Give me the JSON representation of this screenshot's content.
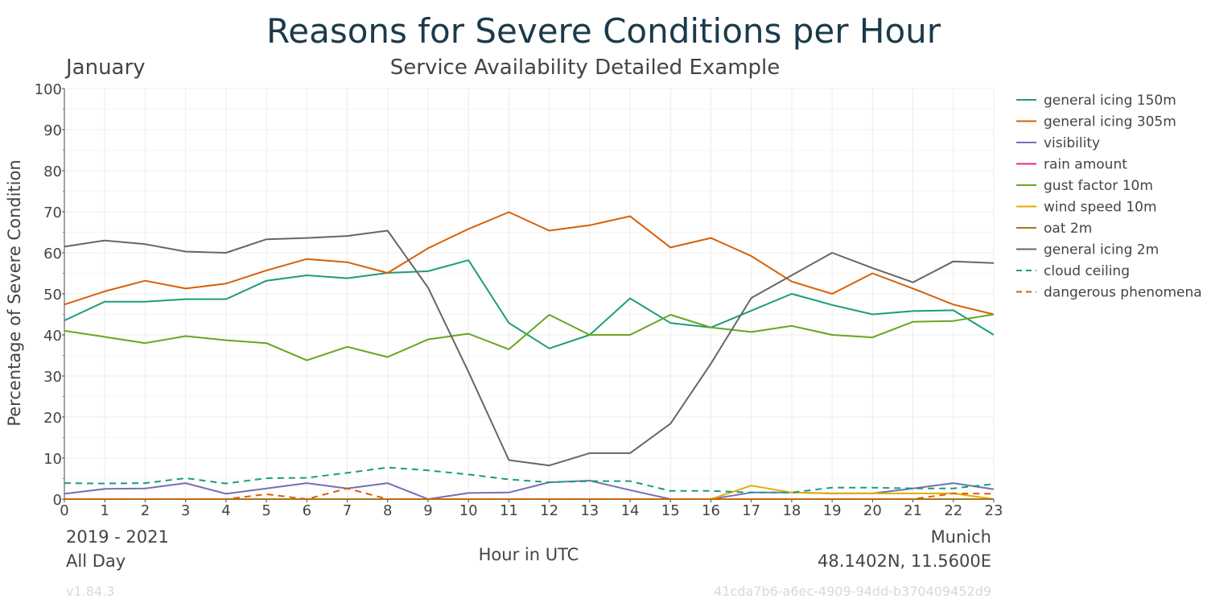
{
  "header": {
    "title": "Reasons for Severe Conditions per Hour",
    "month": "January",
    "subtitle": "Service Availability Detailed Example"
  },
  "footer": {
    "period": "2019 - 2021",
    "time_span": "All Day",
    "location_name": "Munich",
    "coordinates": "48.1402N, 11.5600E",
    "version": "v1.84.3",
    "uuid": "41cda7b6-a6ec-4909-94dd-b370409452d9"
  },
  "colors": {
    "title": "#1b3a4b",
    "text": "#444444",
    "grid": "#ececec",
    "faint": "#d8d8d8"
  },
  "chart_data": {
    "type": "line",
    "xlabel": "Hour in UTC",
    "ylabel": "Percentage of Severe Condition",
    "xlim": [
      0,
      23
    ],
    "ylim": [
      0,
      100
    ],
    "x_ticks": [
      0,
      1,
      2,
      3,
      4,
      5,
      6,
      7,
      8,
      9,
      10,
      11,
      12,
      13,
      14,
      15,
      16,
      17,
      18,
      19,
      20,
      21,
      22,
      23
    ],
    "y_ticks": [
      0,
      10,
      20,
      30,
      40,
      50,
      60,
      70,
      80,
      90,
      100
    ],
    "grid": true,
    "legend_position": "right",
    "x": [
      0,
      1,
      2,
      3,
      4,
      5,
      6,
      7,
      8,
      9,
      10,
      11,
      12,
      13,
      14,
      15,
      16,
      17,
      18,
      19,
      20,
      21,
      22,
      23
    ],
    "series": [
      {
        "name": "general icing 150m",
        "color": "#1b9e77",
        "dash": false,
        "values": [
          43.5,
          48.1,
          48.1,
          48.7,
          48.7,
          53.2,
          54.5,
          53.8,
          55.1,
          55.5,
          58.2,
          42.9,
          36.7,
          40.0,
          48.9,
          42.9,
          41.8,
          45.9,
          50.0,
          47.3,
          45.0,
          45.8,
          46.0,
          40.0
        ]
      },
      {
        "name": "general icing 305m",
        "color": "#d95f02",
        "dash": false,
        "values": [
          47.4,
          50.6,
          53.2,
          51.3,
          52.5,
          55.7,
          58.5,
          57.7,
          55.1,
          61.1,
          65.8,
          69.9,
          65.4,
          66.7,
          68.9,
          61.3,
          63.6,
          59.2,
          53.0,
          50.0,
          55.0,
          51.3,
          47.4,
          45.0
        ]
      },
      {
        "name": "visibility",
        "color": "#7570b3",
        "dash": false,
        "values": [
          1.3,
          2.5,
          2.6,
          3.9,
          1.3,
          2.6,
          3.9,
          2.6,
          3.9,
          0.0,
          1.5,
          1.6,
          4.1,
          4.5,
          2.2,
          0.0,
          0.0,
          1.6,
          1.6,
          1.4,
          1.4,
          2.6,
          3.9,
          2.4
        ]
      },
      {
        "name": "rain amount",
        "color": "#e7298a",
        "dash": false,
        "values": [
          0,
          0,
          0,
          0,
          0,
          0,
          0,
          0,
          0,
          0,
          0,
          0,
          0,
          0,
          0,
          0,
          0,
          0,
          0,
          0,
          0,
          0,
          0,
          0
        ]
      },
      {
        "name": "gust factor 10m",
        "color": "#66a61e",
        "dash": false,
        "values": [
          41.0,
          39.5,
          38.0,
          39.7,
          38.7,
          38.0,
          33.8,
          37.1,
          34.6,
          38.9,
          40.3,
          36.5,
          44.9,
          40.0,
          40.0,
          44.9,
          41.8,
          40.7,
          42.2,
          40.0,
          39.4,
          43.2,
          43.4,
          45.0
        ]
      },
      {
        "name": "wind speed 10m",
        "color": "#e6ab02",
        "dash": false,
        "values": [
          0,
          0,
          0,
          0,
          0,
          0,
          0,
          0,
          0,
          0,
          0,
          0,
          0,
          0,
          0,
          0,
          0,
          3.3,
          1.6,
          1.4,
          1.4,
          1.4,
          1.4,
          0.0
        ]
      },
      {
        "name": "oat 2m",
        "color": "#a6761d",
        "dash": false,
        "values": [
          0,
          0,
          0,
          0,
          0,
          0,
          0,
          0,
          0,
          0,
          0,
          0,
          0,
          0,
          0,
          0,
          0,
          0,
          0,
          0,
          0,
          0,
          0,
          0
        ]
      },
      {
        "name": "general icing 2m",
        "color": "#666666",
        "dash": false,
        "values": [
          61.5,
          63.0,
          62.1,
          60.3,
          60.0,
          63.3,
          63.6,
          64.1,
          65.4,
          51.5,
          31.0,
          9.5,
          8.2,
          11.2,
          11.2,
          18.4,
          33.0,
          49.0,
          54.5,
          60.0,
          56.3,
          52.8,
          57.9,
          57.5
        ]
      },
      {
        "name": "cloud ceiling",
        "color": "#1b9e77",
        "dash": true,
        "values": [
          3.9,
          3.8,
          3.9,
          5.1,
          3.8,
          5.1,
          5.2,
          6.4,
          7.7,
          7.0,
          6.0,
          4.8,
          4.1,
          4.4,
          4.4,
          2.0,
          2.0,
          1.6,
          1.6,
          2.8,
          2.8,
          2.6,
          2.6,
          3.7
        ]
      },
      {
        "name": "dangerous phenomena",
        "color": "#d95f02",
        "dash": true,
        "values": [
          0.0,
          0.0,
          0.0,
          0.0,
          0.0,
          1.2,
          0.0,
          2.6,
          0.0,
          0.0,
          0.0,
          0.0,
          0.0,
          0.0,
          0.0,
          0.0,
          0.0,
          0.0,
          0.0,
          0.0,
          0.0,
          0.0,
          1.4,
          1.3
        ]
      }
    ]
  }
}
